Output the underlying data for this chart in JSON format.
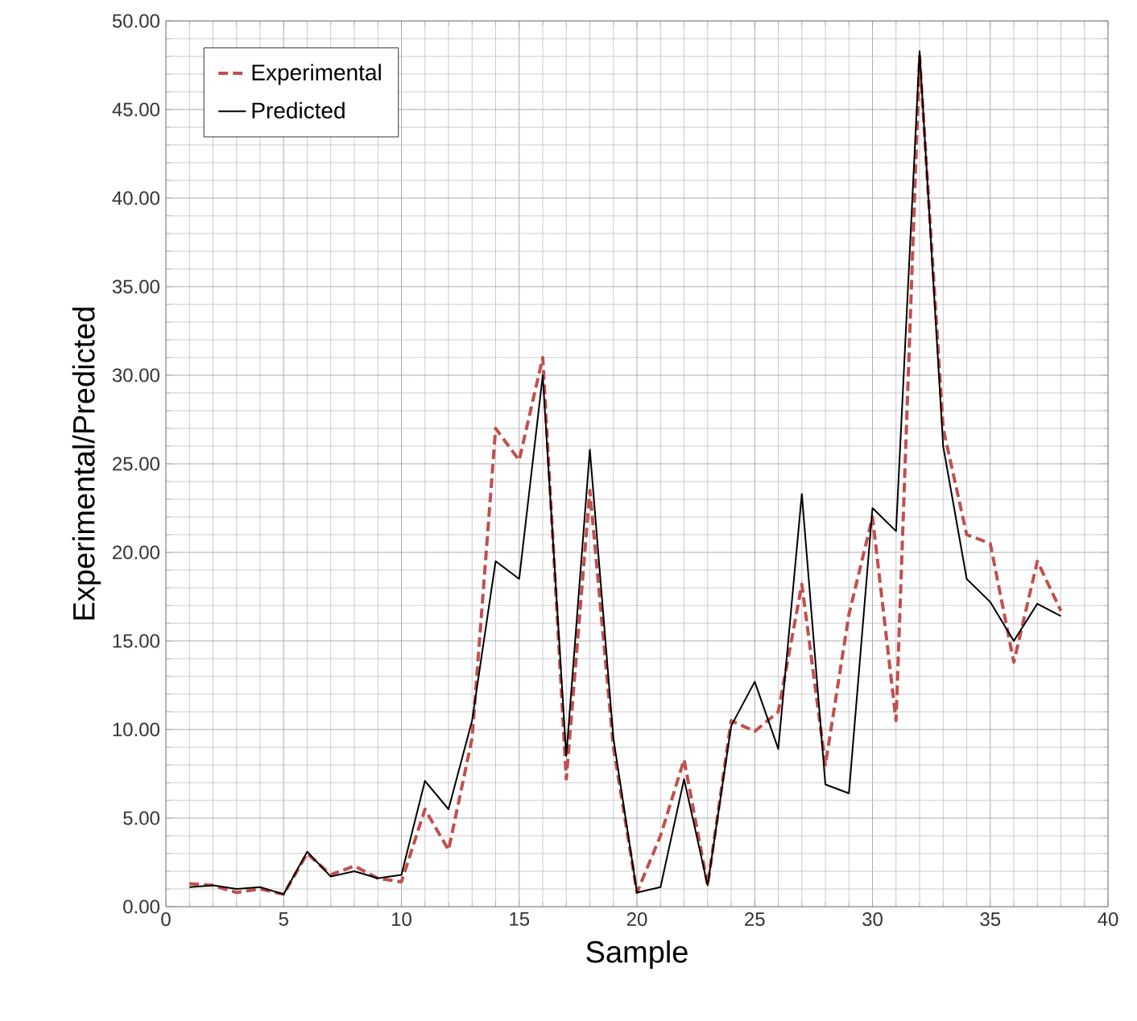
{
  "chart_data": {
    "type": "line",
    "xlabel": "Sample",
    "ylabel": "Experimental/Predicted",
    "xlim": [
      0,
      40
    ],
    "xticks": [
      0,
      5,
      10,
      15,
      20,
      25,
      30,
      35,
      40
    ],
    "ylim": [
      0,
      50
    ],
    "yticks": [
      {
        "value": 0,
        "label": "0.00"
      },
      {
        "value": 5,
        "label": "5.00"
      },
      {
        "value": 10,
        "label": "10.00"
      },
      {
        "value": 15,
        "label": "15.00"
      },
      {
        "value": 20,
        "label": "20.00"
      },
      {
        "value": 25,
        "label": "25.00"
      },
      {
        "value": 30,
        "label": "30.00"
      },
      {
        "value": 35,
        "label": "35.00"
      },
      {
        "value": 40,
        "label": "40.00"
      },
      {
        "value": 45,
        "label": "45.00"
      },
      {
        "value": 50,
        "label": "50.00"
      }
    ],
    "x": [
      1,
      2,
      3,
      4,
      5,
      6,
      7,
      8,
      9,
      10,
      11,
      12,
      13,
      14,
      15,
      16,
      17,
      18,
      19,
      20,
      21,
      22,
      23,
      24,
      25,
      26,
      27,
      28,
      29,
      30,
      31,
      32,
      33,
      34,
      35,
      36,
      37,
      38
    ],
    "grid": true,
    "legend": "top left",
    "marker": "none",
    "series": [
      {
        "name": "Experimental",
        "color": "#c0504d",
        "line_style": "dashed",
        "values": [
          1.3,
          1.2,
          0.8,
          1.0,
          0.7,
          3.0,
          1.8,
          2.3,
          1.6,
          1.4,
          5.5,
          3.2,
          9.5,
          27.0,
          25.2,
          31.0,
          7.2,
          23.5,
          9.0,
          0.8,
          4.0,
          8.3,
          1.2,
          10.5,
          9.9,
          11.0,
          18.2,
          8.0,
          16.5,
          22.0,
          10.5,
          48.0,
          27.0,
          21.0,
          20.5,
          13.8,
          19.5,
          16.7
        ]
      },
      {
        "name": "Predicted",
        "color": "#000000",
        "line_style": "solid",
        "values": [
          1.1,
          1.2,
          1.0,
          1.1,
          0.7,
          3.1,
          1.7,
          2.0,
          1.6,
          1.8,
          7.1,
          5.5,
          10.5,
          19.5,
          18.5,
          30.0,
          8.5,
          25.8,
          9.5,
          0.8,
          1.1,
          7.2,
          1.2,
          10.2,
          12.7,
          8.9,
          23.3,
          6.9,
          6.4,
          22.5,
          21.2,
          48.3,
          26.0,
          18.5,
          17.2,
          15.0,
          17.1,
          16.4
        ]
      }
    ]
  }
}
